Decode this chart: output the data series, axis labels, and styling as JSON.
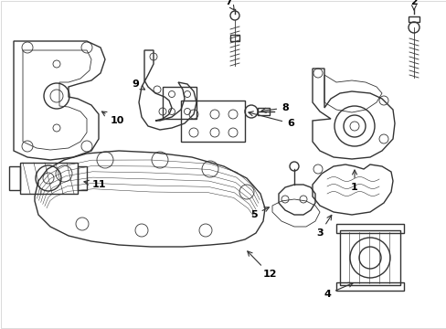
{
  "bg_color": "#ffffff",
  "line_color": "#333333",
  "label_color": "#000000",
  "fig_width": 4.89,
  "fig_height": 3.6,
  "dpi": 100,
  "border_color": "#cccccc"
}
